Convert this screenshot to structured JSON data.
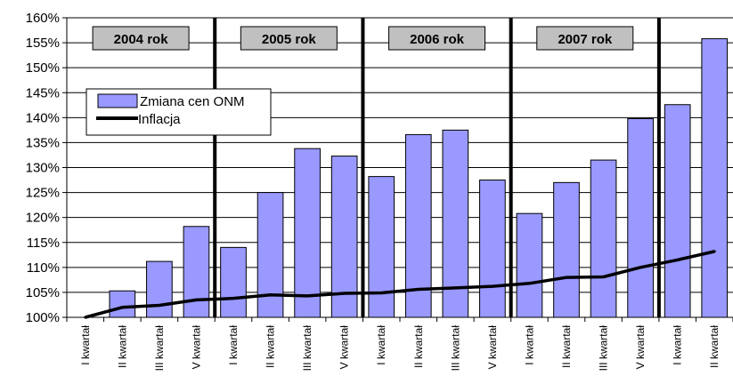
{
  "chart_data": {
    "type": "bar",
    "title": "",
    "xlabel": "",
    "ylabel": "",
    "ylim": [
      100,
      160
    ],
    "y_tick_step": 5,
    "y_tick_suffix": "%",
    "grid": true,
    "categories": [
      "I kwartał",
      "II kwartał",
      "III kwartał",
      "V kwartał",
      "I kwartał",
      "II kwartał",
      "III kwartał",
      "V kwartał",
      "I kwartał",
      "II kwartał",
      "III kwartał",
      "V kwartał",
      "I kwartał",
      "II kwartał",
      "III kwartał",
      "V kwartał",
      "I kwartał",
      "II kwartał"
    ],
    "series": [
      {
        "name": "Zmiana cen ONM",
        "type": "bar",
        "color": "#9999FF",
        "values": [
          100,
          105.3,
          111.2,
          118.2,
          114.0,
          125.0,
          133.8,
          132.3,
          128.2,
          136.6,
          137.5,
          127.5,
          120.8,
          127.0,
          131.5,
          139.8,
          142.6,
          155.8
        ]
      },
      {
        "name": "Inflacja",
        "type": "line",
        "color": "#000000",
        "values": [
          100,
          102.0,
          102.4,
          103.5,
          103.8,
          104.5,
          104.3,
          104.8,
          104.9,
          105.6,
          105.9,
          106.2,
          106.8,
          108.0,
          108.1,
          110.0,
          111.5,
          113.2
        ]
      }
    ],
    "year_groups": [
      {
        "label": "2004 rok",
        "start": 0,
        "end": 4
      },
      {
        "label": "2005 rok",
        "start": 4,
        "end": 8
      },
      {
        "label": "2006 rok",
        "start": 8,
        "end": 12
      },
      {
        "label": "2007 rok",
        "start": 12,
        "end": 16
      }
    ],
    "legend_placement": "upper-left"
  }
}
